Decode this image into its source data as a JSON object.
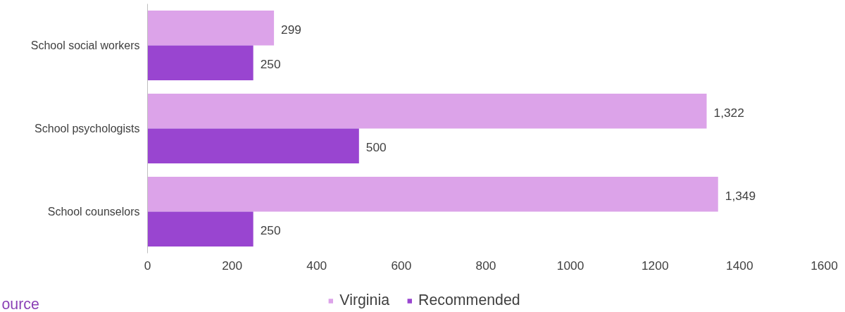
{
  "chart_data": {
    "type": "bar",
    "orientation": "horizontal",
    "categories": [
      "School social workers",
      "School psychologists",
      "School counselors"
    ],
    "series": [
      {
        "name": "Virginia",
        "color": "#dca3e9",
        "values": [
          299,
          1322,
          1349
        ],
        "value_labels": [
          "299",
          "1,322",
          "1,349"
        ]
      },
      {
        "name": "Recommended",
        "color": "#9945d0",
        "values": [
          250,
          500,
          250
        ],
        "value_labels": [
          "250",
          "500",
          "250"
        ]
      }
    ],
    "xlim": [
      0,
      1600
    ],
    "xticks": [
      0,
      200,
      400,
      600,
      800,
      1000,
      1200,
      1400,
      1600
    ],
    "grid": false,
    "legend": "bottom",
    "annotations": [
      "ource"
    ]
  }
}
